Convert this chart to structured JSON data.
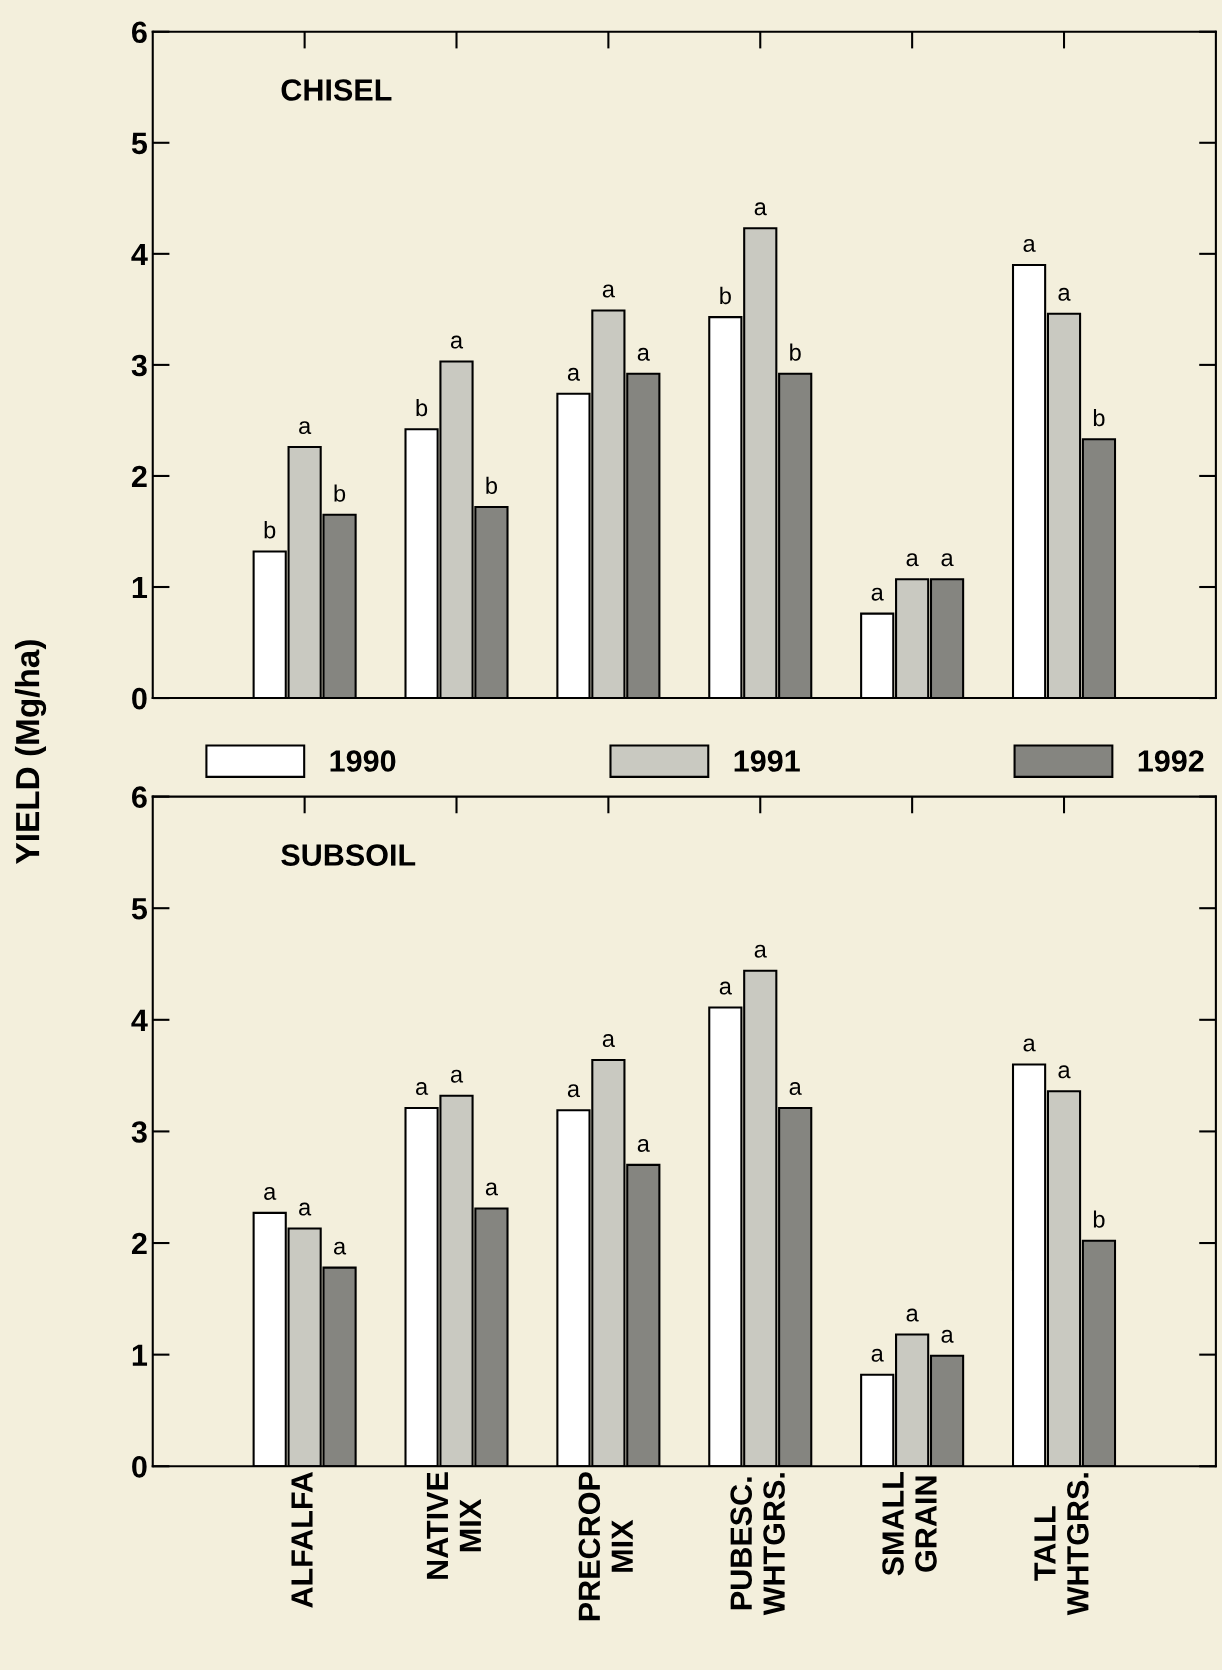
{
  "chart_data": [
    {
      "type": "bar",
      "title": "CHISEL",
      "ylabel": "YIELD (Mg/ha)",
      "categories": [
        null,
        null,
        null,
        null,
        null,
        null
      ],
      "ylim": [
        0,
        6
      ],
      "yticks": [
        0,
        1,
        2,
        3,
        4,
        5,
        6
      ],
      "tick_labels": "y",
      "legend": "bottom",
      "series": [
        {
          "name": "1990",
          "color": "#ffffff",
          "values": [
            1.32,
            2.42,
            2.74,
            3.43,
            0.76,
            3.9
          ],
          "value_labels": [
            "b",
            "b",
            "a",
            "b",
            "a",
            "a"
          ]
        },
        {
          "name": "1991",
          "color": "#c9c9c1",
          "values": [
            2.26,
            3.03,
            3.49,
            4.23,
            1.07,
            3.46
          ],
          "value_labels": [
            "a",
            "a",
            "a",
            "a",
            "a",
            "a"
          ]
        },
        {
          "name": "1992",
          "color": "#858580",
          "values": [
            1.65,
            1.72,
            2.92,
            2.92,
            1.07,
            2.33
          ],
          "value_labels": [
            "b",
            "b",
            "a",
            "b",
            "a",
            "b"
          ]
        }
      ]
    },
    {
      "type": "bar",
      "title": "SUBSOIL",
      "categories": [
        "ALFALFA",
        "NATIVE\nMIX",
        "PRECROP\nMIX",
        "PUBESC.\nWHTGRS.",
        "SMALL\nGRAIN",
        "TALL\nWHTGRS."
      ],
      "ylim": [
        0,
        6
      ],
      "yticks": [
        0,
        1,
        2,
        3,
        4,
        5,
        6
      ],
      "series": [
        {
          "color": "#ffffff",
          "values": [
            2.27,
            3.21,
            3.19,
            4.11,
            0.82,
            3.6
          ],
          "value_labels": [
            "a",
            "a",
            "a",
            "a",
            "a",
            "a"
          ]
        },
        {
          "color": "#c9c9c1",
          "values": [
            2.13,
            3.32,
            3.64,
            4.44,
            1.18,
            3.36
          ],
          "value_labels": [
            "a",
            "a",
            "a",
            "a",
            "a",
            "a"
          ]
        },
        {
          "color": "#858580",
          "values": [
            1.78,
            2.31,
            2.7,
            3.21,
            0.99,
            2.02
          ],
          "value_labels": [
            "a",
            "a",
            "a",
            "a",
            "a",
            "b"
          ]
        }
      ]
    }
  ]
}
